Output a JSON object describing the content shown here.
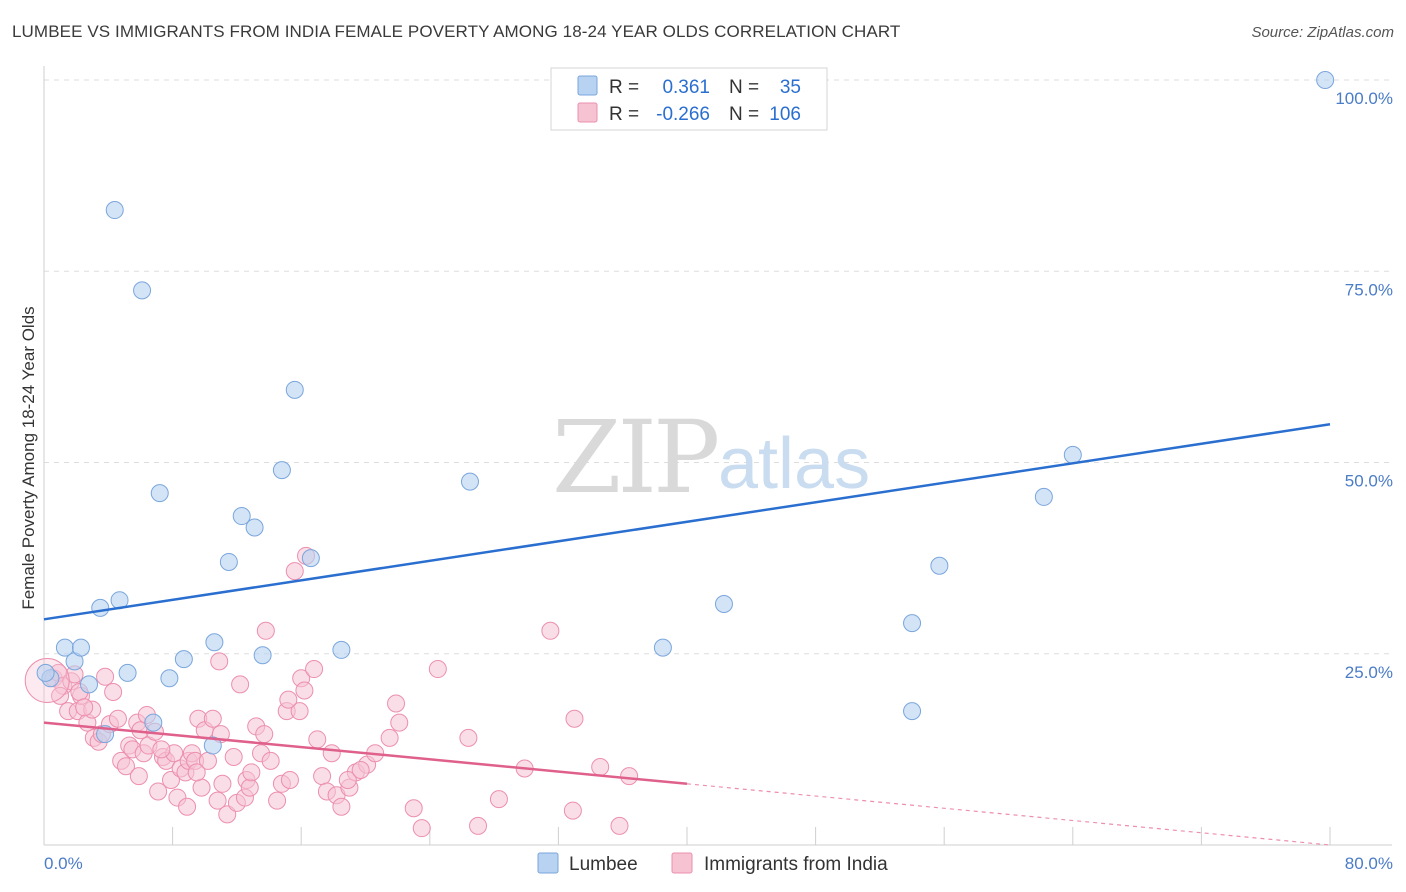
{
  "title": "LUMBEE VS IMMIGRANTS FROM INDIA FEMALE POVERTY AMONG 18-24 YEAR OLDS CORRELATION CHART",
  "source": "Source: ZipAtlas.com",
  "watermark": {
    "zip": "ZIP",
    "atlas": "atlas"
  },
  "colors": {
    "lumbee_fill": "#b8d2f2",
    "lumbee_stroke": "#7aa6dc",
    "lumbee_line": "#2a6fd0",
    "india_fill": "#f6c3d3",
    "india_stroke": "#ec8fae",
    "india_line": "#e0608c",
    "value_text": "#2a6fd0",
    "grid": "#dddddd"
  },
  "legend": {
    "rows": [
      {
        "r_label": "R =",
        "r_value": "0.361",
        "n_label": "N =",
        "n_value": "35"
      },
      {
        "r_label": "R =",
        "r_value": "-0.266",
        "n_label": "N =",
        "n_value": "106"
      }
    ]
  },
  "chart_data": {
    "type": "scatter",
    "title": "LUMBEE VS IMMIGRANTS FROM INDIA FEMALE POVERTY AMONG 18-24 YEAR OLDS CORRELATION CHART",
    "xlabel": "",
    "ylabel": "Female Poverty Among 18-24 Year Olds",
    "xlim": [
      0,
      80
    ],
    "ylim": [
      0,
      100
    ],
    "x_tick_labels": [
      "0.0%",
      "80.0%"
    ],
    "y_tick_labels": [
      "100.0%",
      "75.0%",
      "50.0%",
      "25.0%"
    ],
    "y_ticks": [
      100,
      75,
      50,
      25
    ],
    "series": [
      {
        "name": "Lumbee",
        "points": [
          [
            0.4,
            21.8
          ],
          [
            1.3,
            25.8
          ],
          [
            1.9,
            24.0
          ],
          [
            2.3,
            25.8
          ],
          [
            2.8,
            21.0
          ],
          [
            3.5,
            31.0
          ],
          [
            3.8,
            14.5
          ],
          [
            4.4,
            83.0
          ],
          [
            4.7,
            32.0
          ],
          [
            5.2,
            22.5
          ],
          [
            6.1,
            72.5
          ],
          [
            6.8,
            16.0
          ],
          [
            7.2,
            46.0
          ],
          [
            7.8,
            21.8
          ],
          [
            8.7,
            24.3
          ],
          [
            10.5,
            13.0
          ],
          [
            10.6,
            26.5
          ],
          [
            11.5,
            37.0
          ],
          [
            12.3,
            43.0
          ],
          [
            13.1,
            41.5
          ],
          [
            13.6,
            24.8
          ],
          [
            14.8,
            49.0
          ],
          [
            15.6,
            59.5
          ],
          [
            16.6,
            37.5
          ],
          [
            18.5,
            25.5
          ],
          [
            26.5,
            47.5
          ],
          [
            38.5,
            25.8
          ],
          [
            42.3,
            31.5
          ],
          [
            54.0,
            29.0
          ],
          [
            54.0,
            17.5
          ],
          [
            55.7,
            36.5
          ],
          [
            62.2,
            45.5
          ],
          [
            64.0,
            51.0
          ],
          [
            79.7,
            100.0
          ],
          [
            0.1,
            22.5
          ]
        ],
        "trend": {
          "x": [
            0,
            80
          ],
          "y": [
            29.5,
            55.0
          ]
        }
      },
      {
        "name": "Immigrants from India",
        "points": [
          [
            0.6,
            21.8
          ],
          [
            0.9,
            22.5
          ],
          [
            1.2,
            20.8
          ],
          [
            1.5,
            17.5
          ],
          [
            1.7,
            21.4
          ],
          [
            1.9,
            22.3
          ],
          [
            2.1,
            17.5
          ],
          [
            2.3,
            19.5
          ],
          [
            2.7,
            16.0
          ],
          [
            3.0,
            17.7
          ],
          [
            3.1,
            14.0
          ],
          [
            3.4,
            13.5
          ],
          [
            3.6,
            14.5
          ],
          [
            4.1,
            15.8
          ],
          [
            4.3,
            20.0
          ],
          [
            4.6,
            16.5
          ],
          [
            4.8,
            11.0
          ],
          [
            5.1,
            10.3
          ],
          [
            5.3,
            13.0
          ],
          [
            5.5,
            12.5
          ],
          [
            5.8,
            16.0
          ],
          [
            6.0,
            15.0
          ],
          [
            6.2,
            12.0
          ],
          [
            6.5,
            13.0
          ],
          [
            6.9,
            14.8
          ],
          [
            7.1,
            7.0
          ],
          [
            7.4,
            11.5
          ],
          [
            7.6,
            11.0
          ],
          [
            7.9,
            8.5
          ],
          [
            8.1,
            12.0
          ],
          [
            8.3,
            6.2
          ],
          [
            8.5,
            10.0
          ],
          [
            8.8,
            9.5
          ],
          [
            9.0,
            11.0
          ],
          [
            9.2,
            12.0
          ],
          [
            9.4,
            11.0
          ],
          [
            9.6,
            16.5
          ],
          [
            9.8,
            7.5
          ],
          [
            10.0,
            15.0
          ],
          [
            10.2,
            11.0
          ],
          [
            10.5,
            16.5
          ],
          [
            10.8,
            5.8
          ],
          [
            10.9,
            24.0
          ],
          [
            11.1,
            8.0
          ],
          [
            11.4,
            4.0
          ],
          [
            11.8,
            11.5
          ],
          [
            12.0,
            5.5
          ],
          [
            12.2,
            21.0
          ],
          [
            12.5,
            6.2
          ],
          [
            12.6,
            8.5
          ],
          [
            12.8,
            7.5
          ],
          [
            13.2,
            15.5
          ],
          [
            13.5,
            12.0
          ],
          [
            13.8,
            28.0
          ],
          [
            14.1,
            11.0
          ],
          [
            14.5,
            5.8
          ],
          [
            14.8,
            8.0
          ],
          [
            15.1,
            17.5
          ],
          [
            15.3,
            8.5
          ],
          [
            15.6,
            35.8
          ],
          [
            16.0,
            21.8
          ],
          [
            16.2,
            20.2
          ],
          [
            16.3,
            37.8
          ],
          [
            16.8,
            23.0
          ],
          [
            17.0,
            13.8
          ],
          [
            17.3,
            9.0
          ],
          [
            17.6,
            7.0
          ],
          [
            17.9,
            12.0
          ],
          [
            18.2,
            6.5
          ],
          [
            18.5,
            5.0
          ],
          [
            19.0,
            7.5
          ],
          [
            19.4,
            9.5
          ],
          [
            20.1,
            10.5
          ],
          [
            20.6,
            12.0
          ],
          [
            21.5,
            14.0
          ],
          [
            21.9,
            18.5
          ],
          [
            22.1,
            16.0
          ],
          [
            23.0,
            4.8
          ],
          [
            23.5,
            2.2
          ],
          [
            24.5,
            23.0
          ],
          [
            26.4,
            14.0
          ],
          [
            27.0,
            2.5
          ],
          [
            28.3,
            6.0
          ],
          [
            29.9,
            10.0
          ],
          [
            31.5,
            28.0
          ],
          [
            32.9,
            4.5
          ],
          [
            33.0,
            16.5
          ],
          [
            34.6,
            10.2
          ],
          [
            35.8,
            2.5
          ],
          [
            36.4,
            9.0
          ],
          [
            2.2,
            20.0
          ],
          [
            3.8,
            22.0
          ],
          [
            5.9,
            9.0
          ],
          [
            7.3,
            12.5
          ],
          [
            9.5,
            9.5
          ],
          [
            11.0,
            14.5
          ],
          [
            12.9,
            9.5
          ],
          [
            13.7,
            14.5
          ],
          [
            15.9,
            17.5
          ],
          [
            18.9,
            8.5
          ],
          [
            19.7,
            9.8
          ],
          [
            1.0,
            19.5
          ],
          [
            2.5,
            18.0
          ],
          [
            6.4,
            17.0
          ],
          [
            8.9,
            5.0
          ],
          [
            15.2,
            19.0
          ]
        ],
        "trend": {
          "x": [
            0,
            40
          ],
          "y": [
            16.0,
            8.0
          ]
        },
        "trend_extension": {
          "x": [
            40,
            80
          ],
          "y": [
            8.0,
            0.0
          ]
        }
      }
    ]
  },
  "bottom_legend": [
    {
      "label": "Lumbee"
    },
    {
      "label": "Immigrants from India"
    }
  ]
}
